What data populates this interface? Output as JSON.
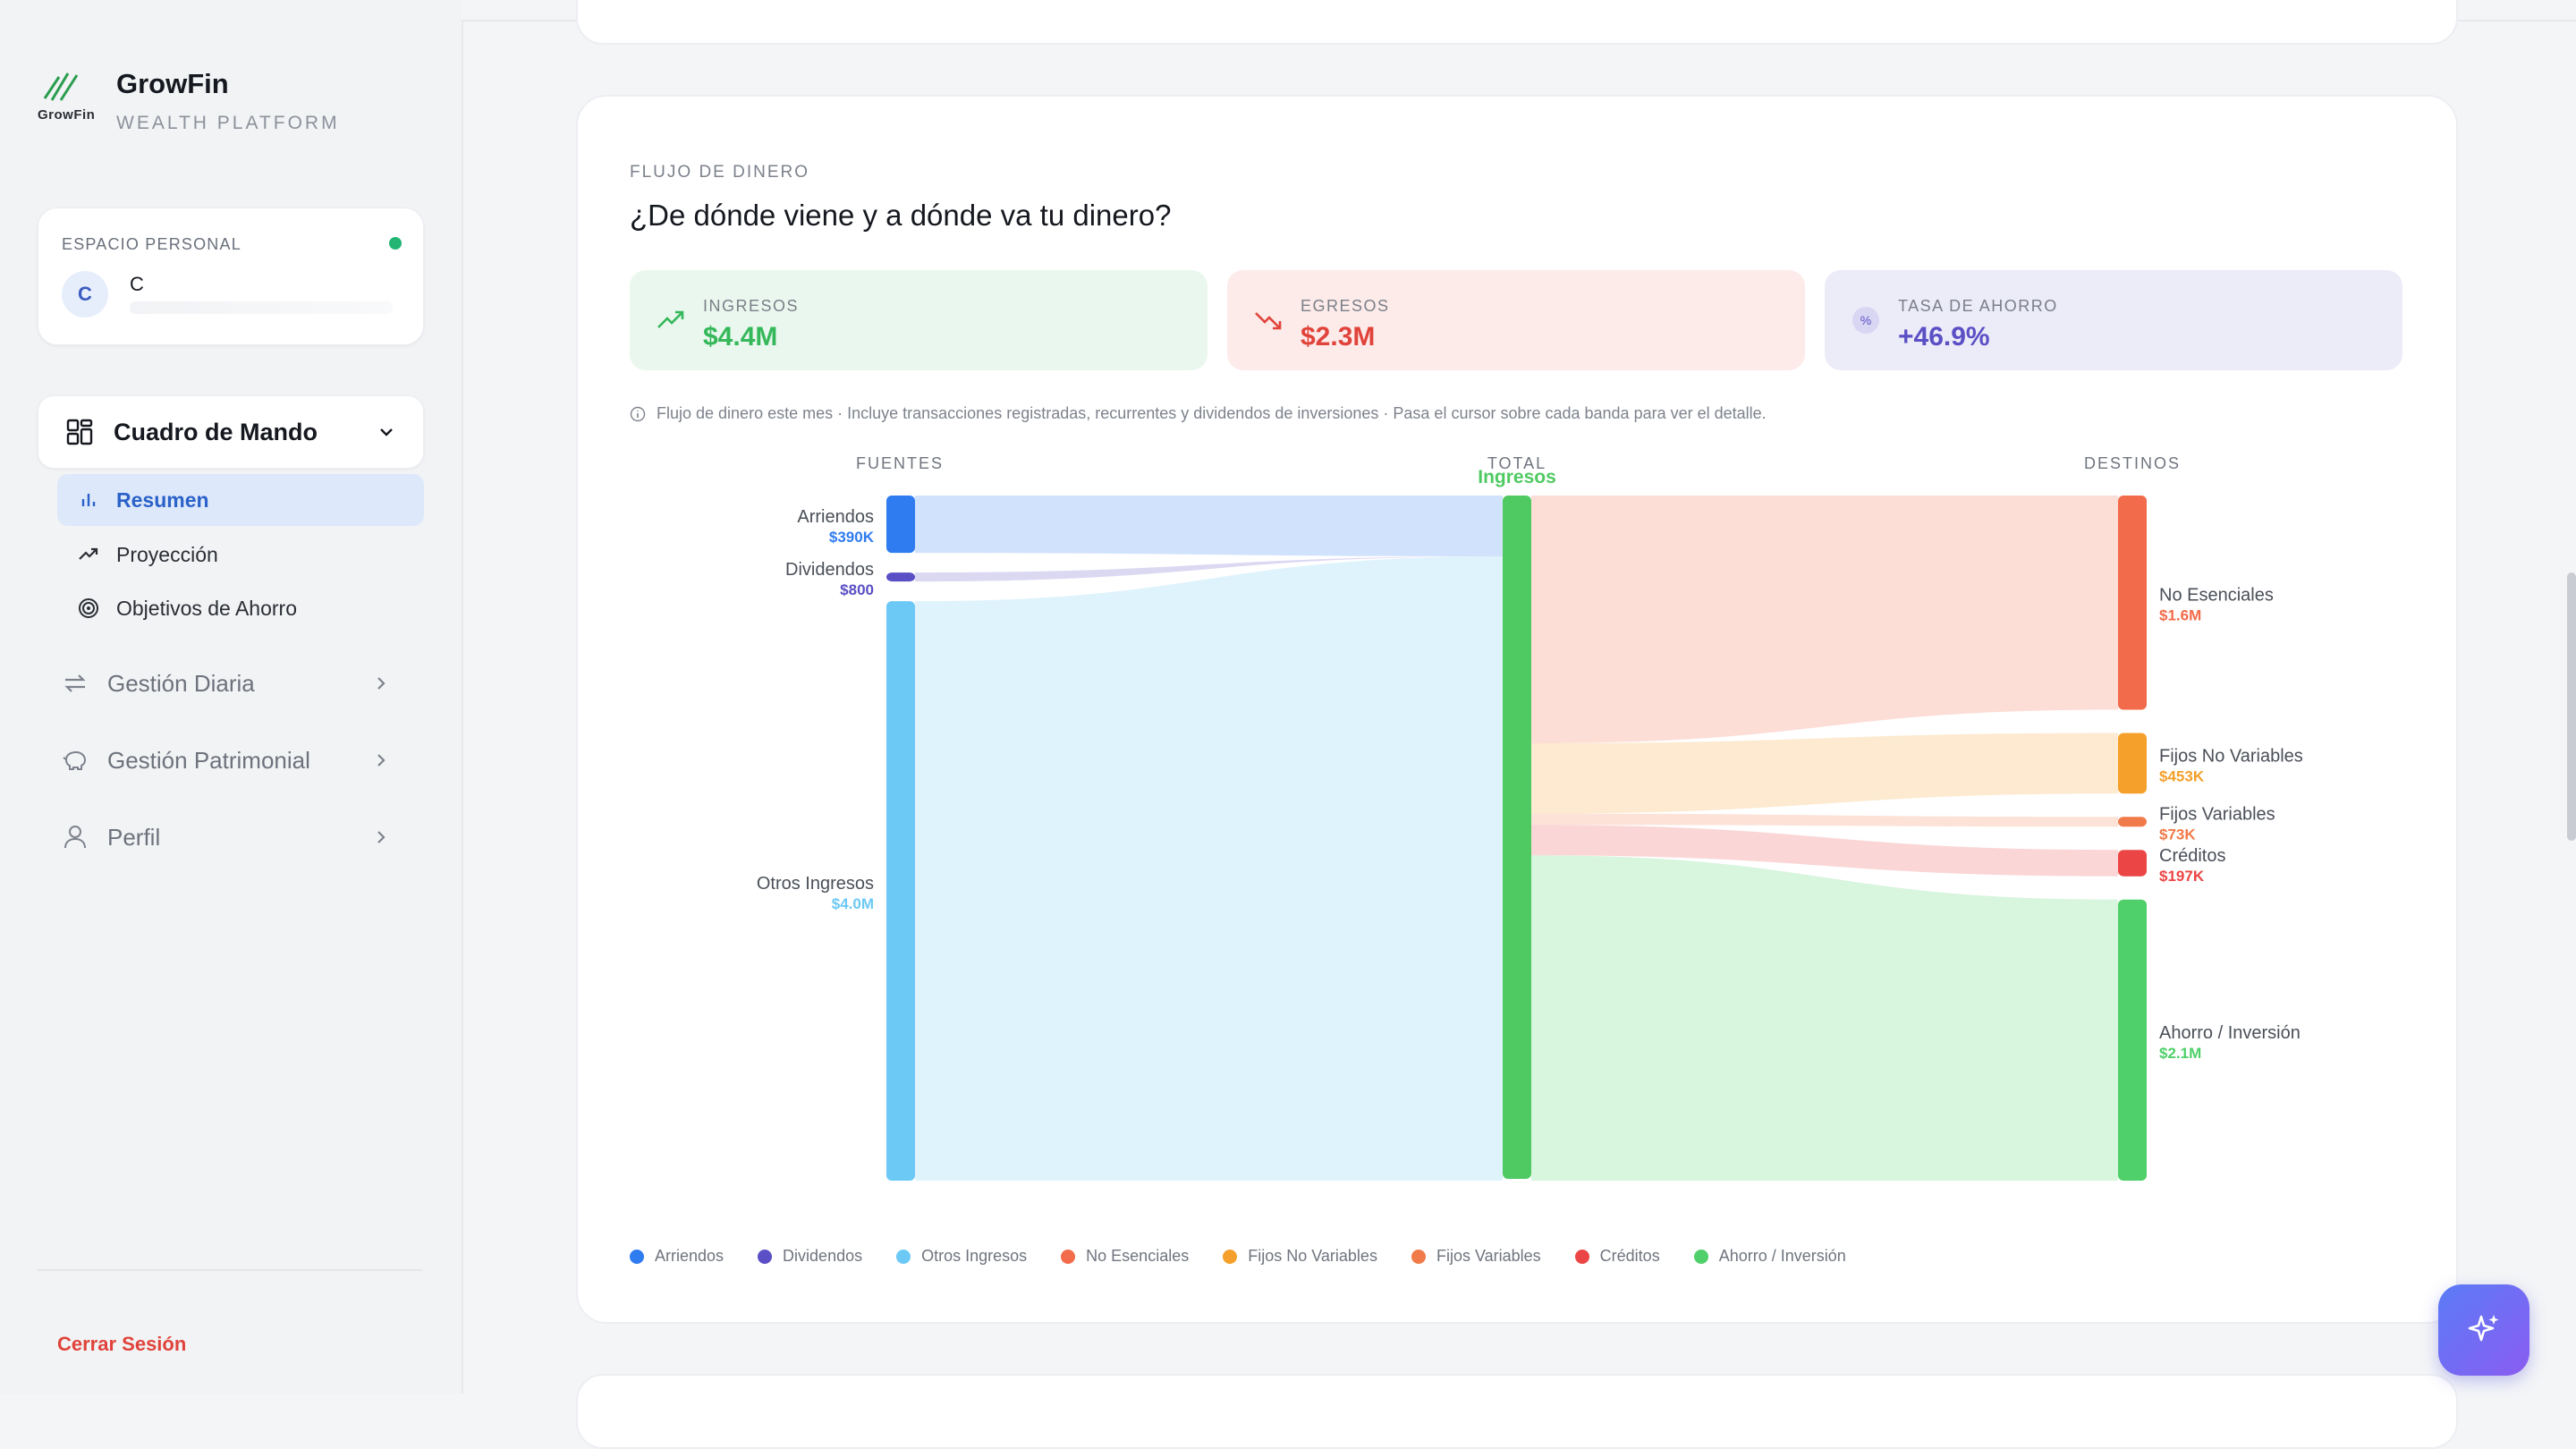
{
  "brand": {
    "name": "GrowFin",
    "subtitle": "WEALTH PLATFORM",
    "logo_word": "GrowFin"
  },
  "workspace": {
    "label": "ESPACIO PERSONAL",
    "avatar": "C",
    "name": "C"
  },
  "nav": {
    "main": {
      "label": "Cuadro de Mando",
      "icon": "dashboard-grid-icon"
    },
    "sub": [
      {
        "label": "Resumen",
        "icon": "bar-chart-icon",
        "active": true
      },
      {
        "label": "Proyección",
        "icon": "trend-up-icon"
      },
      {
        "label": "Objetivos de Ahorro",
        "icon": "target-icon"
      }
    ],
    "groups": [
      {
        "label": "Gestión Diaria",
        "icon": "repeat-icon"
      },
      {
        "label": "Gestión Patrimonial",
        "icon": "piggy-bank-icon"
      },
      {
        "label": "Perfil",
        "icon": "user-icon"
      }
    ],
    "logout": "Cerrar Sesión"
  },
  "card": {
    "eyebrow": "FLUJO DE DINERO",
    "title": "¿De dónde viene y a dónde va tu dinero?",
    "kpis": [
      {
        "label": "INGRESOS",
        "value": "$4.4M",
        "icon": "trend-up-icon",
        "color": "#35b85a",
        "bg": "#eaf7ee"
      },
      {
        "label": "EGRESOS",
        "value": "$2.3M",
        "icon": "trend-down-icon",
        "color": "#e0433a",
        "bg": "#fdebea"
      },
      {
        "label": "TASA DE AHORRO",
        "value": "+46.9%",
        "icon": "percent-icon",
        "color": "#5a4fc4",
        "bg": "#ecebf8"
      }
    ],
    "note": "Flujo de dinero este mes · Incluye transacciones registradas, recurrentes y dividendos de inversiones · Pasa el cursor sobre cada banda para ver el detalle."
  },
  "chart_data": {
    "type": "sankey",
    "column_headers": [
      "FUENTES",
      "TOTAL",
      "DESTINOS"
    ],
    "center_node": "Ingresos",
    "sources": [
      {
        "name": "Arriendos",
        "label": "$390K",
        "value": 390000,
        "color": "#2f7cf0"
      },
      {
        "name": "Dividendos",
        "label": "$800",
        "value": 800,
        "color": "#5a4fc4"
      },
      {
        "name": "Otros Ingresos",
        "label": "$4.0M",
        "value": 4000000,
        "color": "#6cc9f5"
      }
    ],
    "destinations": [
      {
        "name": "No Esenciales",
        "label": "$1.6M",
        "value": 1600000,
        "color": "#f26b4a"
      },
      {
        "name": "Fijos No Variables",
        "label": "$453K",
        "value": 453000,
        "color": "#f4a02a"
      },
      {
        "name": "Fijos Variables",
        "label": "$73K",
        "value": 73000,
        "color": "#f07a4a"
      },
      {
        "name": "Créditos",
        "label": "$197K",
        "value": 197000,
        "color": "#ec4545"
      },
      {
        "name": "Ahorro / Inversión",
        "label": "$2.1M",
        "value": 2100000,
        "color": "#4fd06a"
      }
    ],
    "center_color": "#4fca62"
  },
  "legend": [
    {
      "label": "Arriendos",
      "color": "#2f7cf0"
    },
    {
      "label": "Dividendos",
      "color": "#5a4fc4"
    },
    {
      "label": "Otros Ingresos",
      "color": "#6cc9f5"
    },
    {
      "label": "No Esenciales",
      "color": "#f26b4a"
    },
    {
      "label": "Fijos No Variables",
      "color": "#f4a02a"
    },
    {
      "label": "Fijos Variables",
      "color": "#f07a4a"
    },
    {
      "label": "Créditos",
      "color": "#ec4545"
    },
    {
      "label": "Ahorro / Inversión",
      "color": "#4fd06a"
    }
  ],
  "fab": {
    "icon": "sparkle-icon"
  }
}
